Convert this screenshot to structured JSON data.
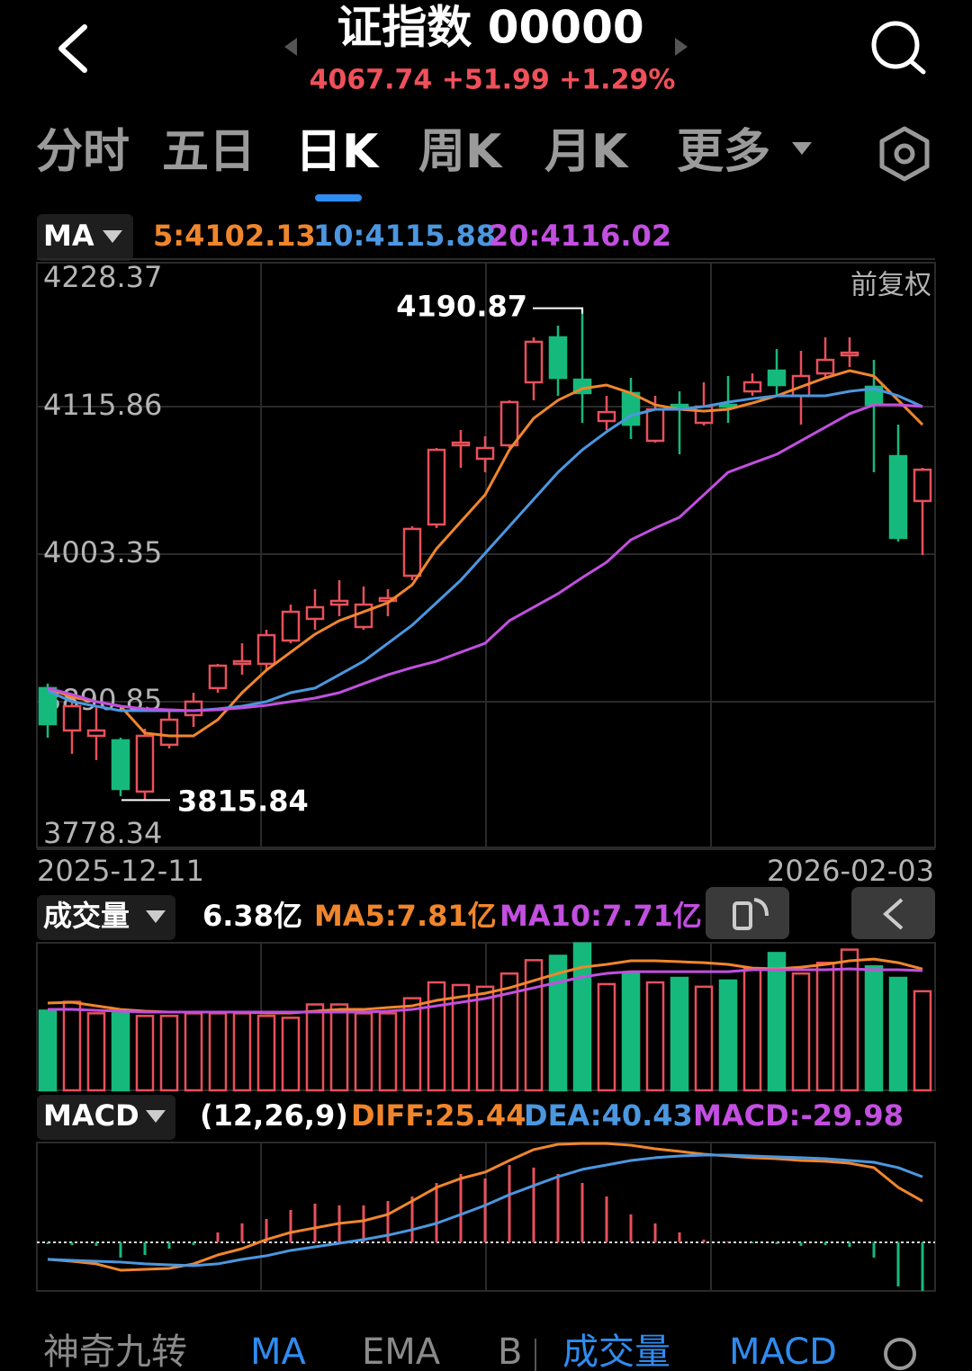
{
  "header": {
    "title": "证指数 00000",
    "quote": "4067.74 +51.99 +1.29%"
  },
  "periods": [
    "分时",
    "五日",
    "日K",
    "周K",
    "月K",
    "更多"
  ],
  "active_period": 2,
  "toolbar": [
    "神奇九转",
    "MA",
    "EMA",
    "B",
    "成交量",
    "MACD"
  ],
  "chart_data": [
    {
      "type": "candlestick",
      "indicator": "MA",
      "adjust": "前复权",
      "x_start_label": "2025-12-11",
      "x_end_label": "2026-02-03",
      "ylim": [
        3778.34,
        4228.37
      ],
      "yticks": [
        4228.37,
        4115.86,
        4003.35,
        3890.85,
        3778.34
      ],
      "grid": true,
      "up_color": "#e8505b",
      "down_color": "#16b97c",
      "candles": [
        {
          "open": 3901.2,
          "high": 3904.6,
          "low": 3863.4,
          "close": 3873.7
        },
        {
          "open": 3868.9,
          "high": 3890.9,
          "low": 3851.1,
          "close": 3887.4
        },
        {
          "open": 3864.8,
          "high": 3887.4,
          "low": 3846.3,
          "close": 3868.9
        },
        {
          "open": 3861.4,
          "high": 3863.4,
          "low": 3818.8,
          "close": 3824.3
        },
        {
          "open": 3822.3,
          "high": 3870.3,
          "low": 3815.84,
          "close": 3864.8
        },
        {
          "open": 3858.0,
          "high": 3885.4,
          "low": 3855.2,
          "close": 3877.1
        },
        {
          "open": 3880.6,
          "high": 3897.7,
          "low": 3871.6,
          "close": 3890.9
        },
        {
          "open": 3901.2,
          "high": 3919.7,
          "low": 3897.7,
          "close": 3918.3
        },
        {
          "open": 3919.7,
          "high": 3935.4,
          "low": 3911.4,
          "close": 3921.7
        },
        {
          "open": 3919.7,
          "high": 3945.7,
          "low": 3914.9,
          "close": 3941.6
        },
        {
          "open": 3937.5,
          "high": 3964.9,
          "low": 3935.4,
          "close": 3959.4
        },
        {
          "open": 3954.0,
          "high": 3976.6,
          "low": 3945.7,
          "close": 3962.9
        },
        {
          "open": 3964.9,
          "high": 3983.5,
          "low": 3956.0,
          "close": 3967.7
        },
        {
          "open": 3947.8,
          "high": 3978.7,
          "low": 3945.7,
          "close": 3964.9
        },
        {
          "open": 3967.7,
          "high": 3976.6,
          "low": 3956.0,
          "close": 3969.8
        },
        {
          "open": 3986.9,
          "high": 4024.6,
          "low": 3983.5,
          "close": 4022.6
        },
        {
          "open": 4026.0,
          "high": 4084.3,
          "low": 4023.3,
          "close": 4082.9
        },
        {
          "open": 4086.4,
          "high": 4098.0,
          "low": 4069.2,
          "close": 4088.4
        },
        {
          "open": 4076.1,
          "high": 4093.2,
          "low": 4065.8,
          "close": 4084.3
        },
        {
          "open": 4086.4,
          "high": 4120.7,
          "low": 4084.3,
          "close": 4119.3
        },
        {
          "open": 4134.4,
          "high": 4168.7,
          "low": 4120.7,
          "close": 4165.3
        },
        {
          "open": 4168.7,
          "high": 4177.6,
          "low": 4124.1,
          "close": 4137.8
        },
        {
          "open": 4136.4,
          "high": 4190.87,
          "low": 4103.5,
          "close": 4126.2
        },
        {
          "open": 4104.9,
          "high": 4124.1,
          "low": 4098.0,
          "close": 4111.7
        },
        {
          "open": 4126.2,
          "high": 4137.8,
          "low": 4091.2,
          "close": 4102.1
        },
        {
          "open": 4089.8,
          "high": 4124.1,
          "low": 4088.4,
          "close": 4113.8
        },
        {
          "open": 4117.2,
          "high": 4127.5,
          "low": 4079.5,
          "close": 4115.9
        },
        {
          "open": 4103.5,
          "high": 4134.4,
          "low": 4101.5,
          "close": 4115.9
        },
        {
          "open": 4117.2,
          "high": 4139.2,
          "low": 4103.5,
          "close": 4115.9
        },
        {
          "open": 4127.5,
          "high": 4141.2,
          "low": 4124.1,
          "close": 4134.4
        },
        {
          "open": 4143.3,
          "high": 4159.8,
          "low": 4124.1,
          "close": 4132.3
        },
        {
          "open": 4124.1,
          "high": 4158.4,
          "low": 4102.1,
          "close": 4139.2
        },
        {
          "open": 4141.2,
          "high": 4168.7,
          "low": 4137.8,
          "close": 4151.5
        },
        {
          "open": 4155.0,
          "high": 4168.7,
          "low": 4146.0,
          "close": 4157.0
        },
        {
          "open": 4131.0,
          "high": 4151.5,
          "low": 4065.8,
          "close": 4117.2
        },
        {
          "open": 4078.1,
          "high": 4102.1,
          "low": 4013.0,
          "close": 4015.75
        },
        {
          "open": 4043.9,
          "high": 4069.2,
          "low": 4002.7,
          "close": 4067.74
        }
      ],
      "series": [
        {
          "name": "5:4102.13",
          "color": "#f0862c",
          "values": [
            3901.2,
            3894.3,
            3890.9,
            3887.4,
            3866.9,
            3864.8,
            3864.8,
            3877.1,
            3897.7,
            3914.9,
            3928.6,
            3942.3,
            3952.6,
            3959.4,
            3966.3,
            3980.0,
            4007.5,
            4028.1,
            4048.6,
            4082.9,
            4107.0,
            4120.7,
            4129.6,
            4132.3,
            4126.2,
            4117.2,
            4113.8,
            4112.4,
            4113.8,
            4118.6,
            4124.1,
            4131.0,
            4137.8,
            4143.3,
            4139.2,
            4120.7,
            4102.13
          ]
        },
        {
          "name": "10:4115.88",
          "color": "#4b97e0",
          "values": [
            3899.1,
            3890.9,
            3887.4,
            3884.0,
            3884.0,
            3884.0,
            3884.0,
            3885.4,
            3887.4,
            3890.9,
            3897.7,
            3901.2,
            3911.4,
            3921.7,
            3935.4,
            3949.2,
            3966.3,
            3983.5,
            4004.0,
            4024.6,
            4045.2,
            4065.8,
            4082.9,
            4096.7,
            4109.0,
            4113.8,
            4113.8,
            4115.9,
            4119.3,
            4122.0,
            4124.1,
            4124.1,
            4124.1,
            4127.5,
            4129.6,
            4124.1,
            4115.88
          ]
        },
        {
          "name": "20:4116.02",
          "color": "#c24fe0",
          "values": [
            3901.2,
            3896.4,
            3890.9,
            3887.4,
            3885.4,
            3884.7,
            3884.0,
            3884.7,
            3886.1,
            3888.1,
            3890.9,
            3893.6,
            3897.7,
            3904.6,
            3911.4,
            3916.9,
            3921.7,
            3928.6,
            3935.4,
            3952.6,
            3962.9,
            3973.2,
            3985.5,
            3997.2,
            4014.3,
            4023.3,
            4031.5,
            4048.6,
            4065.8,
            4072.7,
            4079.5,
            4089.8,
            4100.1,
            4110.4,
            4117.2,
            4117.2,
            4116.02
          ]
        }
      ]
    },
    {
      "type": "bar",
      "indicator": "成交量",
      "current_label": "6.38亿",
      "ylim": [
        0,
        9.5
      ],
      "values": [
        5.13,
        5.7,
        4.96,
        4.96,
        4.79,
        4.79,
        4.96,
        4.96,
        4.96,
        4.79,
        4.67,
        5.53,
        5.53,
        4.96,
        4.96,
        5.93,
        6.95,
        6.78,
        6.67,
        7.52,
        8.38,
        8.66,
        9.46,
        6.84,
        7.52,
        6.95,
        7.24,
        6.67,
        7.07,
        7.81,
        8.84,
        7.52,
        8.21,
        9.06,
        7.98,
        7.24,
        6.38
      ],
      "series": [
        {
          "name": "MA5:7.81亿",
          "color": "#f0862c",
          "values": [
            5.62,
            5.67,
            5.44,
            5.21,
            5.1,
            5.04,
            5.04,
            5.04,
            5.04,
            4.98,
            4.98,
            5.1,
            5.21,
            5.21,
            5.33,
            5.44,
            5.79,
            6.02,
            6.25,
            6.6,
            7.06,
            7.53,
            7.93,
            8.11,
            8.34,
            8.34,
            8.28,
            8.22,
            8.11,
            7.87,
            7.82,
            7.93,
            8.11,
            8.34,
            8.45,
            8.22,
            7.81
          ]
        },
        {
          "name": "MA10:7.71亿",
          "color": "#c24fe0",
          "values": [
            5.21,
            5.21,
            5.15,
            5.1,
            5.04,
            5.04,
            5.04,
            5.04,
            5.04,
            5.04,
            5.04,
            5.04,
            5.04,
            5.04,
            5.1,
            5.21,
            5.44,
            5.67,
            5.91,
            6.25,
            6.6,
            6.95,
            7.3,
            7.53,
            7.64,
            7.64,
            7.64,
            7.64,
            7.64,
            7.76,
            7.76,
            7.76,
            7.76,
            7.82,
            7.76,
            7.76,
            7.71
          ]
        }
      ]
    },
    {
      "type": "macd",
      "indicator": "MACD",
      "params": "(12,26,9)",
      "ylim": [
        -30,
        61.6
      ],
      "up_color": "#e8505b",
      "down_color": "#16b97c",
      "series": [
        {
          "name": "DIFF:25.44",
          "color": "#f0862c",
          "values": [
            -10.5,
            -11.7,
            -13.3,
            -17.2,
            -16.7,
            -16.1,
            -13.3,
            -7.8,
            -3.9,
            1.7,
            6.1,
            8.9,
            11.7,
            13.3,
            17.2,
            25.5,
            33.9,
            39.4,
            43.3,
            50.5,
            57.2,
            60.5,
            61.0,
            61.0,
            59.9,
            57.7,
            56.1,
            54.4,
            53.3,
            52.2,
            51.6,
            50.5,
            50.0,
            48.8,
            46.1,
            33.9,
            25.44
          ]
        },
        {
          "name": "DEA:40.43",
          "color": "#4b97e0",
          "values": [
            -10.5,
            -11.1,
            -11.7,
            -12.2,
            -13.3,
            -13.9,
            -14.4,
            -13.3,
            -10.5,
            -8.3,
            -5.0,
            -2.8,
            -0.6,
            1.7,
            4.4,
            7.8,
            11.7,
            17.2,
            22.8,
            29.4,
            35.0,
            40.5,
            45.0,
            47.7,
            50.5,
            52.2,
            53.3,
            53.8,
            53.8,
            53.3,
            52.7,
            52.2,
            51.6,
            50.5,
            49.4,
            46.1,
            40.43
          ]
        }
      ],
      "histogram": {
        "name": "MACD:-29.98",
        "color": "#c24fe0",
        "values": [
          -1.1,
          -1.7,
          -2.2,
          -9.4,
          -7.8,
          -3.9,
          -1.7,
          6.1,
          11.7,
          14.4,
          20.0,
          23.9,
          22.8,
          22.8,
          25.5,
          28.3,
          36.6,
          42.2,
          39.4,
          47.7,
          46.1,
          42.2,
          36.6,
          28.3,
          17.2,
          11.7,
          6.1,
          1.7,
          0.6,
          -0.6,
          -1.1,
          -2.2,
          -1.7,
          -2.8,
          -9.4,
          -27.2,
          -29.98
        ]
      }
    }
  ]
}
